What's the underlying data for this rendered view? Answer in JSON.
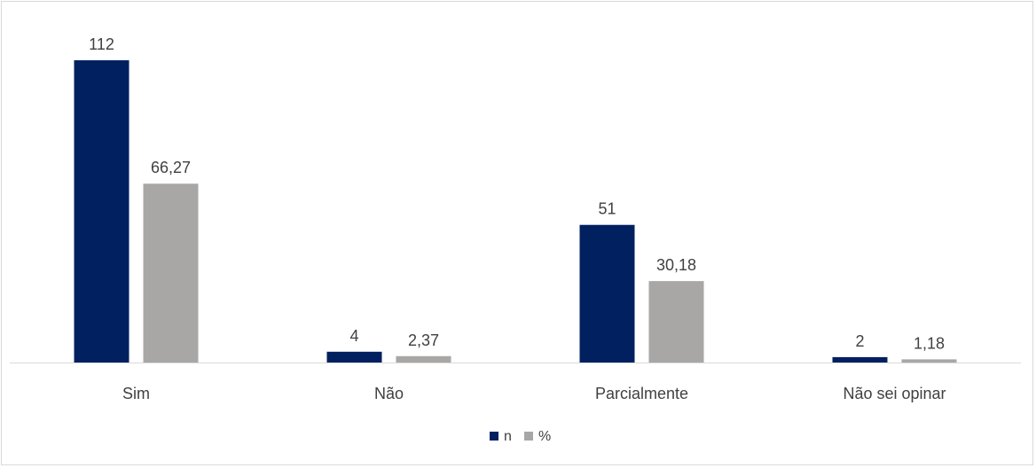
{
  "chart_data": {
    "type": "bar",
    "title": "",
    "xlabel": "",
    "ylabel": "",
    "categories": [
      "Sim",
      "Não",
      "Parcialmente",
      "Não sei opinar"
    ],
    "series": [
      {
        "name": "n",
        "color": "#002060",
        "values": [
          112,
          4,
          51,
          2
        ],
        "labels": [
          "112",
          "4",
          "51",
          "2"
        ]
      },
      {
        "name": "%",
        "color": "#a9a6a6",
        "values": [
          66.27,
          2.37,
          30.18,
          1.18
        ],
        "labels": [
          "66,27",
          "2,37",
          "30,18",
          "1,18"
        ]
      }
    ],
    "ylim": [
      0,
      112
    ],
    "grid": false,
    "legend_position": "bottom",
    "axis_color": "#d9d9d9"
  }
}
